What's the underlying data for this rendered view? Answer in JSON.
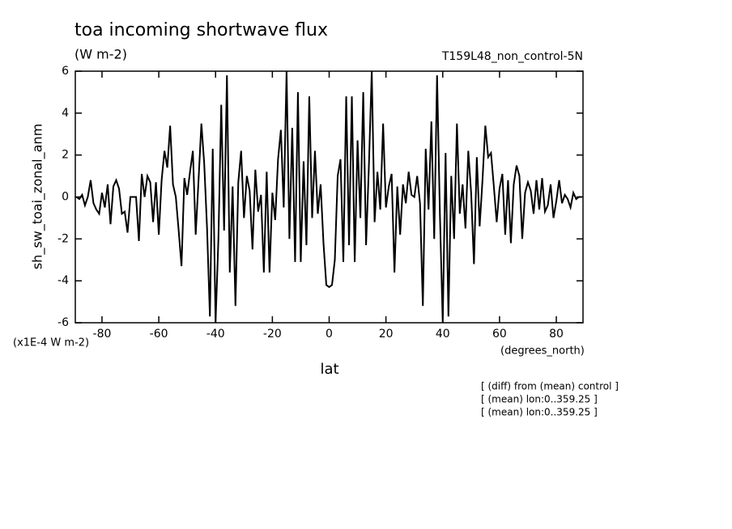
{
  "chart_data": {
    "type": "line",
    "title": "toa incoming shortwave flux",
    "subtitle": "(W m-2)",
    "dataset_label": "T159L48_non_control-5N",
    "y_label": "sh_sw_toai_zonal_anm",
    "y_units": "(x1E-4 W m-2)",
    "x_units": "(degrees_north)",
    "x_label": "lat",
    "notes": [
      "[ (diff) from (mean) control ]",
      "[ (mean) lon:0..359.25 ]",
      "[ (mean) lon:0..359.25 ]"
    ],
    "xlim": [
      -89.4,
      89.4
    ],
    "ylim": [
      -6,
      6
    ],
    "xticks": [
      -80,
      -60,
      -40,
      -20,
      0,
      20,
      40,
      60,
      80
    ],
    "yticks": [
      -6,
      -4,
      -2,
      0,
      2,
      4,
      6
    ],
    "color": "#000000",
    "x": [
      -89,
      -88,
      -87,
      -86,
      -85,
      -84,
      -83,
      -82,
      -81,
      -80,
      -79,
      -78,
      -77,
      -76,
      -75,
      -74,
      -73,
      -72,
      -71,
      -70,
      -69,
      -68,
      -67,
      -66,
      -65,
      -64,
      -63,
      -62,
      -61,
      -60,
      -59,
      -58,
      -57,
      -56,
      -55,
      -54,
      -53,
      -52,
      -51,
      -50,
      -49,
      -48,
      -47,
      -46,
      -45,
      -44,
      -43,
      -42,
      -41,
      -40,
      -39,
      -38,
      -37,
      -36,
      -35,
      -34,
      -33,
      -32,
      -31,
      -30,
      -29,
      -28,
      -27,
      -26,
      -25,
      -24,
      -23,
      -22,
      -21,
      -20,
      -19,
      -18,
      -17,
      -16,
      -15,
      -14,
      -13,
      -12,
      -11,
      -10,
      -9,
      -8,
      -7,
      -6,
      -5,
      -4,
      -3,
      -2,
      -1,
      0,
      1,
      2,
      3,
      4,
      5,
      6,
      7,
      8,
      9,
      10,
      11,
      12,
      13,
      14,
      15,
      16,
      17,
      18,
      19,
      20,
      21,
      22,
      23,
      24,
      25,
      26,
      27,
      28,
      29,
      30,
      31,
      32,
      33,
      34,
      35,
      36,
      37,
      38,
      39,
      40,
      41,
      42,
      43,
      44,
      45,
      46,
      47,
      48,
      49,
      50,
      51,
      52,
      53,
      54,
      55,
      56,
      57,
      58,
      59,
      60,
      61,
      62,
      63,
      64,
      65,
      66,
      67,
      68,
      69,
      70,
      71,
      72,
      73,
      74,
      75,
      76,
      77,
      78,
      79,
      80,
      81,
      82,
      83,
      84,
      85,
      86,
      87,
      88,
      89
    ],
    "values": [
      0,
      -0.1,
      0.1,
      -0.4,
      0,
      0.8,
      -0.3,
      -0.6,
      -0.8,
      0.2,
      -0.5,
      0.6,
      -1.3,
      0.5,
      0.8,
      0.4,
      -0.8,
      -0.7,
      -1.7,
      0,
      0,
      0,
      -2.1,
      1.1,
      0,
      1.0,
      0.7,
      -1.2,
      0.7,
      -1.8,
      0.8,
      2.2,
      1.4,
      3.4,
      0.6,
      0,
      -1.6,
      -3.3,
      0.9,
      0.1,
      1.2,
      2.2,
      -1.8,
      0.8,
      3.5,
      1.6,
      -1.5,
      -5.7,
      2.3,
      -6,
      -2,
      4.4,
      -1.6,
      5.8,
      -3.6,
      0.5,
      -5.2,
      0.7,
      2.2,
      -1,
      1,
      0.3,
      -2.5,
      1.3,
      -0.7,
      0.1,
      -3.6,
      1.2,
      -3.6,
      0.2,
      -1.1,
      1.8,
      3.2,
      -0.5,
      6,
      -2,
      3.3,
      -3.1,
      5,
      -3.1,
      1.7,
      -2.3,
      4.8,
      -1,
      2.2,
      -0.8,
      0.6,
      -2.2,
      -4.2,
      -4.3,
      -4.2,
      -3,
      1,
      1.8,
      -3.1,
      4.8,
      -2.3,
      4.8,
      -3.1,
      2.7,
      -1,
      5,
      -2.3,
      1.5,
      6,
      -1.2,
      1.2,
      -0.6,
      3.5,
      -0.5,
      0.5,
      1.1,
      -3.6,
      0.5,
      -1.8,
      0.6,
      -0.3,
      1.2,
      0.1,
      0,
      1,
      -0.3,
      -5.2,
      2.3,
      -0.6,
      3.6,
      -2,
      5.8,
      -0.8,
      -6,
      2.1,
      -5.7,
      1,
      -2,
      3.5,
      -0.8,
      0.6,
      -1.5,
      2.2,
      0.2,
      -3.2,
      1.9,
      -1.4,
      0.8,
      3.4,
      1.9,
      2.1,
      0.5,
      -1.2,
      0.4,
      1.1,
      -1.8,
      0.8,
      -2.2,
      0.6,
      1.5,
      1.0,
      -2.0,
      0.2,
      0.7,
      0.3,
      -0.8,
      0.8,
      -0.6,
      0.9,
      -0.7,
      -0.4,
      0.6,
      -1,
      -0.2,
      0.8,
      -0.3,
      0.1,
      -0.1,
      -0.5,
      0.2,
      -0.1,
      0,
      0
    ]
  }
}
